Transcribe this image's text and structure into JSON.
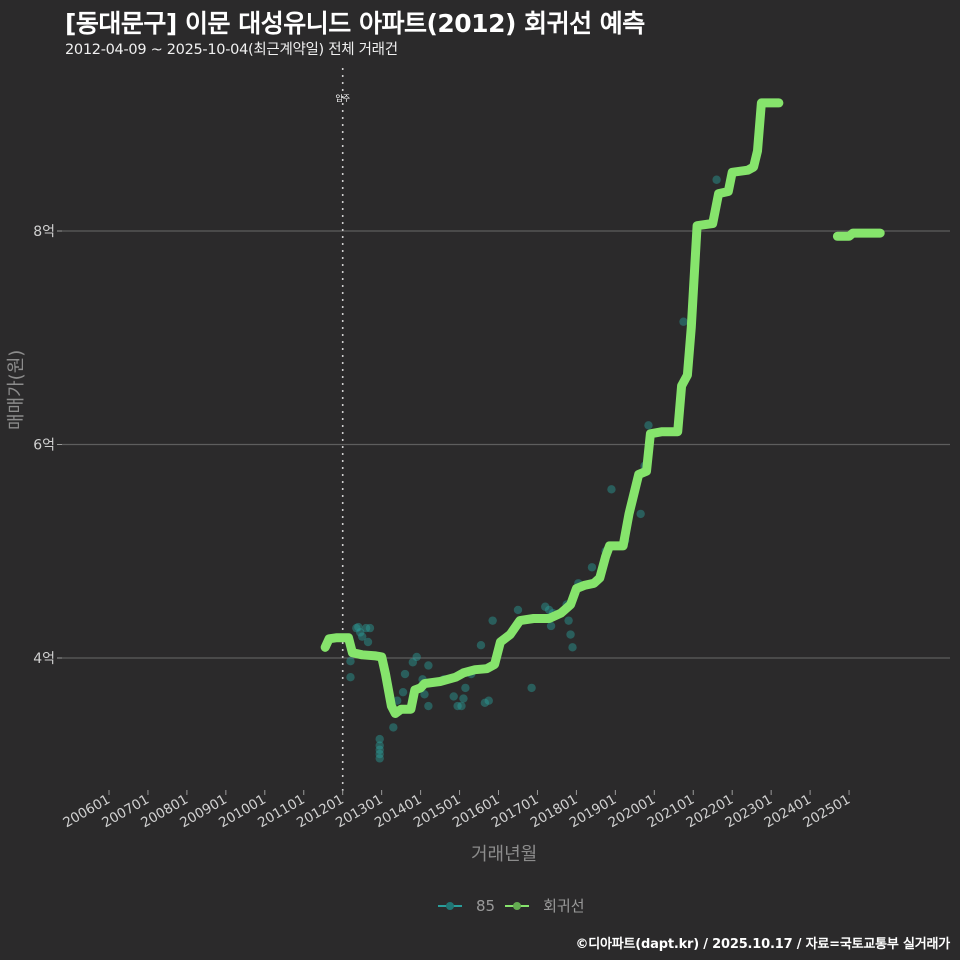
{
  "header": {
    "title": "[동대문구] 이문 대성유니드 아파트(2012) 회귀선 예측",
    "subtitle": "2012-04-09 ~ 2025-10-04(최근계약일) 전체 거래건"
  },
  "axes": {
    "x_title": "거래년월",
    "y_title": "매매가(원)",
    "annotation": "입주"
  },
  "legend": {
    "items": [
      {
        "label": "85",
        "color": "#2a9d9a"
      },
      {
        "label": "회귀선",
        "color": "#86e46c"
      }
    ]
  },
  "footer": {
    "caption": "©디아파트(dapt.kr) / 2025.10.17 / 자료=국토교통부 실거래가"
  },
  "colors": {
    "background": "#2b2a2b",
    "regression": "#86e46c",
    "scatter": "#2a9d9a",
    "grid": "#5e5e5e",
    "vline": "#cfcfcf"
  },
  "chart_data": {
    "type": "line",
    "title": "[동대문구] 이문 대성유니드 아파트(2012) 회귀선 예측",
    "subtitle": "2012-04-09 ~ 2025-10-04(최근계약일) 전체 거래건",
    "xlabel": "거래년월",
    "ylabel": "매매가(원)",
    "x_ticks": [
      "200601",
      "200701",
      "200801",
      "200901",
      "201001",
      "201101",
      "201201",
      "201301",
      "201401",
      "201501",
      "201601",
      "201701",
      "201801",
      "201901",
      "202001",
      "202101",
      "202201",
      "202301",
      "202401",
      "202501"
    ],
    "y_ticks": [
      "4억",
      "6억",
      "8억"
    ],
    "y_tick_values": [
      4.0,
      6.0,
      8.0
    ],
    "ylim": [
      2.7,
      9.5
    ],
    "xlim": [
      2005.0,
      2027.0
    ],
    "grid": "horizontal major only",
    "legend_position": "bottom",
    "vline": {
      "x": 2012.0,
      "label": "입주",
      "style": "dotted"
    },
    "series": [
      {
        "name": "회귀선",
        "type": "line",
        "segments": [
          [
            [
              2011.55,
              4.1
            ],
            [
              2011.65,
              4.18
            ],
            [
              2011.85,
              4.19
            ],
            [
              2012.15,
              4.19
            ],
            [
              2012.25,
              4.05
            ],
            [
              2012.5,
              4.03
            ],
            [
              2012.85,
              4.02
            ],
            [
              2013.0,
              4.01
            ],
            [
              2013.1,
              3.85
            ],
            [
              2013.25,
              3.55
            ],
            [
              2013.35,
              3.48
            ],
            [
              2013.5,
              3.52
            ],
            [
              2013.75,
              3.52
            ],
            [
              2013.85,
              3.7
            ],
            [
              2014.0,
              3.72
            ],
            [
              2014.1,
              3.76
            ],
            [
              2014.5,
              3.78
            ],
            [
              2014.9,
              3.82
            ],
            [
              2015.1,
              3.86
            ],
            [
              2015.4,
              3.89
            ],
            [
              2015.7,
              3.9
            ],
            [
              2015.9,
              3.94
            ],
            [
              2016.05,
              4.15
            ],
            [
              2016.3,
              4.22
            ],
            [
              2016.55,
              4.35
            ],
            [
              2016.9,
              4.37
            ],
            [
              2017.3,
              4.37
            ],
            [
              2017.6,
              4.42
            ],
            [
              2017.85,
              4.5
            ],
            [
              2018.0,
              4.65
            ],
            [
              2018.2,
              4.68
            ],
            [
              2018.45,
              4.7
            ],
            [
              2018.6,
              4.75
            ],
            [
              2018.75,
              4.95
            ],
            [
              2018.85,
              5.05
            ],
            [
              2019.2,
              5.05
            ],
            [
              2019.35,
              5.35
            ],
            [
              2019.6,
              5.72
            ],
            [
              2019.8,
              5.75
            ],
            [
              2019.9,
              6.1
            ],
            [
              2020.2,
              6.12
            ],
            [
              2020.6,
              6.12
            ],
            [
              2020.7,
              6.55
            ],
            [
              2020.85,
              6.65
            ],
            [
              2020.95,
              7.1
            ],
            [
              2021.1,
              8.05
            ],
            [
              2021.5,
              8.07
            ],
            [
              2021.65,
              8.35
            ],
            [
              2021.9,
              8.37
            ],
            [
              2022.0,
              8.55
            ],
            [
              2022.4,
              8.57
            ],
            [
              2022.55,
              8.6
            ],
            [
              2022.65,
              8.75
            ],
            [
              2022.75,
              9.2
            ],
            [
              2023.2,
              9.2
            ]
          ],
          [
            [
              2024.7,
              7.95
            ],
            [
              2025.0,
              7.95
            ],
            [
              2025.1,
              7.98
            ],
            [
              2025.8,
              7.98
            ]
          ]
        ]
      },
      {
        "name": "85",
        "type": "scatter",
        "points": [
          [
            2012.35,
            4.28
          ],
          [
            2012.4,
            4.29
          ],
          [
            2012.45,
            4.24
          ],
          [
            2012.5,
            4.2
          ],
          [
            2012.6,
            4.28
          ],
          [
            2012.7,
            4.28
          ],
          [
            2012.65,
            4.15
          ],
          [
            2012.2,
            3.97
          ],
          [
            2012.2,
            3.82
          ],
          [
            2012.95,
            3.24
          ],
          [
            2012.95,
            3.18
          ],
          [
            2012.95,
            3.14
          ],
          [
            2012.95,
            3.1
          ],
          [
            2012.95,
            3.06
          ],
          [
            2013.3,
            3.35
          ],
          [
            2013.4,
            3.6
          ],
          [
            2013.55,
            3.68
          ],
          [
            2013.6,
            3.85
          ],
          [
            2013.8,
            3.96
          ],
          [
            2013.9,
            4.01
          ],
          [
            2014.05,
            3.8
          ],
          [
            2014.2,
            3.93
          ],
          [
            2014.2,
            3.55
          ],
          [
            2014.1,
            3.66
          ],
          [
            2014.6,
            3.8
          ],
          [
            2014.85,
            3.64
          ],
          [
            2014.95,
            3.55
          ],
          [
            2015.05,
            3.55
          ],
          [
            2015.1,
            3.62
          ],
          [
            2015.15,
            3.72
          ],
          [
            2015.3,
            3.85
          ],
          [
            2015.55,
            4.12
          ],
          [
            2015.65,
            3.58
          ],
          [
            2015.75,
            3.6
          ],
          [
            2015.85,
            4.35
          ],
          [
            2016.5,
            4.45
          ],
          [
            2016.85,
            3.72
          ],
          [
            2017.2,
            4.48
          ],
          [
            2017.3,
            4.45
          ],
          [
            2017.4,
            4.42
          ],
          [
            2017.35,
            4.3
          ],
          [
            2017.75,
            4.5
          ],
          [
            2017.8,
            4.35
          ],
          [
            2017.85,
            4.22
          ],
          [
            2017.9,
            4.1
          ],
          [
            2018.05,
            4.7
          ],
          [
            2018.4,
            4.85
          ],
          [
            2018.75,
            5.0
          ],
          [
            2018.9,
            5.58
          ],
          [
            2019.25,
            5.1
          ],
          [
            2019.65,
            5.35
          ],
          [
            2019.75,
            5.8
          ],
          [
            2019.85,
            6.18
          ],
          [
            2020.75,
            7.15
          ],
          [
            2021.6,
            8.48
          ]
        ]
      }
    ]
  }
}
